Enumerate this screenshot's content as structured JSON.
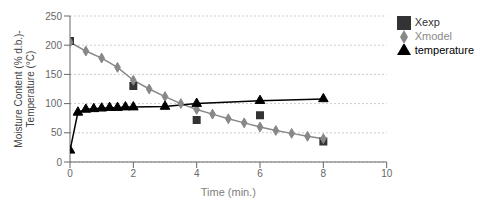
{
  "chart_data": {
    "type": "line",
    "xlabel": "Time (min.)",
    "ylabel": "Moisture Content (% d.b.)-\nTemperature (°C)",
    "xlim": [
      0,
      10
    ],
    "ylim": [
      0,
      250
    ],
    "xticks": [
      0,
      2,
      4,
      6,
      8,
      10
    ],
    "yticks": [
      0,
      50,
      100,
      150,
      200,
      250
    ],
    "grid": "y",
    "legend": "right",
    "series": [
      {
        "name": "Xmodel",
        "type": "line",
        "color": "#888888",
        "marker": "diamond",
        "line_style": "solid",
        "x": [
          0,
          0.5,
          1,
          1.5,
          2,
          2.5,
          3,
          3.5,
          4,
          4.5,
          5,
          5.5,
          6,
          6.5,
          7,
          7.5,
          8
        ],
        "values": [
          205,
          190,
          178,
          162,
          140,
          125,
          112,
          100,
          90,
          82,
          74,
          67,
          60,
          54,
          49,
          44,
          40
        ]
      },
      {
        "name": "Xexp",
        "type": "scatter",
        "color": "#333333",
        "marker": "square",
        "line_style": "none",
        "x": [
          0,
          2,
          4,
          6,
          8
        ],
        "values": [
          207,
          130,
          72,
          80,
          35
        ]
      },
      {
        "name": "temperature",
        "type": "line",
        "color": "#000000",
        "marker": "triangle",
        "line_style": "solid",
        "x": [
          0,
          0.25,
          0.5,
          0.75,
          1,
          1.25,
          1.5,
          1.75,
          2,
          3,
          4,
          6,
          8
        ],
        "values": [
          20,
          85,
          90,
          91,
          92,
          93,
          93,
          94,
          94,
          95,
          100,
          105,
          108
        ]
      }
    ]
  }
}
